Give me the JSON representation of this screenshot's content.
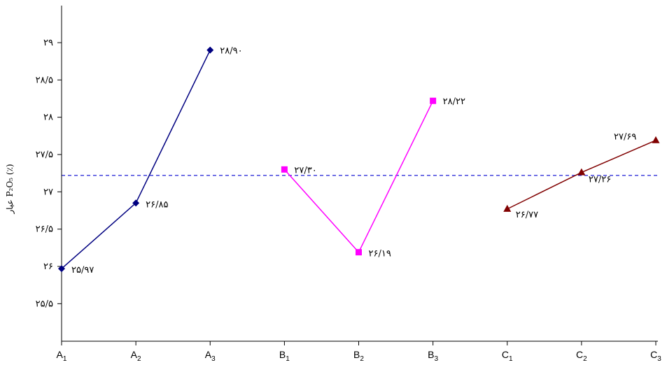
{
  "chart_data": {
    "type": "line",
    "ylabel": "عیار P₂O₅ (٪)",
    "ylim": [
      25,
      29.5
    ],
    "yticks": [
      {
        "value": 25.5,
        "label": "۲۵/۵"
      },
      {
        "value": 26,
        "label": "۲۶"
      },
      {
        "value": 26.5,
        "label": "۲۶/۵"
      },
      {
        "value": 27,
        "label": "۲۷"
      },
      {
        "value": 27.5,
        "label": "۲۷/۵"
      },
      {
        "value": 28,
        "label": "۲۸"
      },
      {
        "value": 28.5,
        "label": "۲۸/۵"
      },
      {
        "value": 29,
        "label": "۲۹"
      }
    ],
    "categories": [
      {
        "base": "A",
        "sub": "1"
      },
      {
        "base": "A",
        "sub": "2"
      },
      {
        "base": "A",
        "sub": "3"
      },
      {
        "base": "B",
        "sub": "1"
      },
      {
        "base": "B",
        "sub": "2"
      },
      {
        "base": "B",
        "sub": "3"
      },
      {
        "base": "C",
        "sub": "1"
      },
      {
        "base": "C",
        "sub": "2"
      },
      {
        "base": "C",
        "sub": "3"
      }
    ],
    "reference_line": {
      "value": 27.22,
      "color": "#1f1fd6",
      "style": "dashed"
    },
    "series": [
      {
        "color": "#000080",
        "marker": "diamond",
        "points": [
          {
            "category_index": 0,
            "value": 25.97,
            "label": "۲۵/۹۷"
          },
          {
            "category_index": 1,
            "value": 26.85,
            "label": "۲۶/۸۵"
          },
          {
            "category_index": 2,
            "value": 28.9,
            "label": "۲۸/۹۰"
          }
        ]
      },
      {
        "color": "#ff00ff",
        "marker": "square",
        "points": [
          {
            "category_index": 3,
            "value": 27.3,
            "label": "۲۷/۳۰"
          },
          {
            "category_index": 4,
            "value": 26.19,
            "label": "۲۶/۱۹"
          },
          {
            "category_index": 5,
            "value": 28.22,
            "label": "۲۸/۲۲"
          }
        ]
      },
      {
        "color": "#800000",
        "marker": "triangle",
        "points": [
          {
            "category_index": 6,
            "value": 26.77,
            "label": "۲۶/۷۷"
          },
          {
            "category_index": 7,
            "value": 27.26,
            "label": "۲۷/۲۶"
          },
          {
            "category_index": 8,
            "value": 27.69,
            "label": "۲۷/۶۹"
          }
        ]
      }
    ]
  }
}
